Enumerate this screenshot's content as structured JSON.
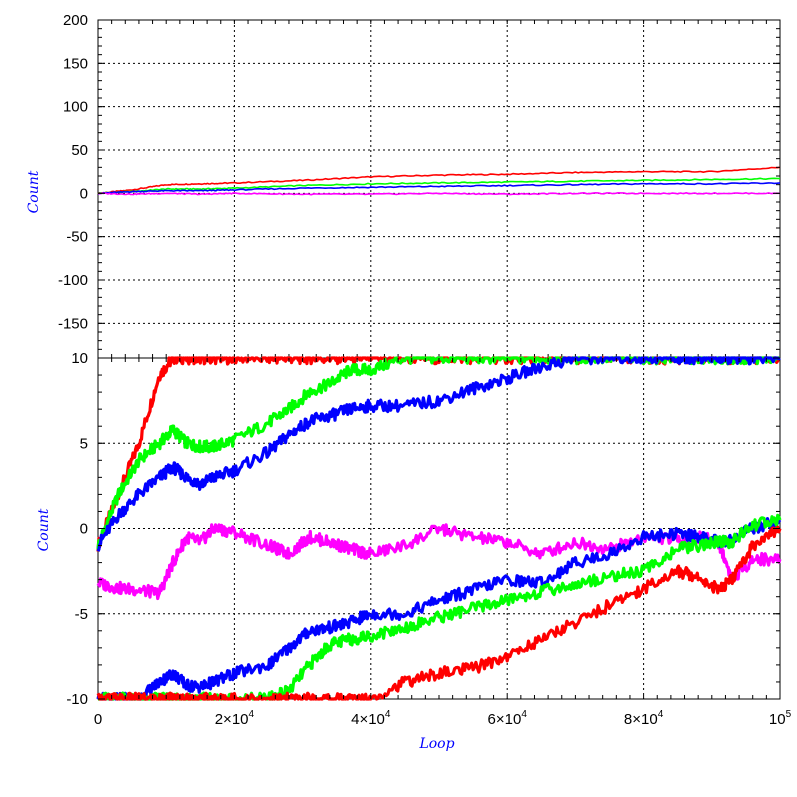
{
  "chart_data": [
    {
      "type": "line",
      "panel": "top",
      "ylabel": "Count",
      "xlim": [
        0,
        100000
      ],
      "ylim": [
        -190,
        200
      ],
      "yticks": [
        -150,
        -100,
        -50,
        0,
        50,
        100,
        150,
        200
      ],
      "ytick_labels": [
        "-150",
        "-100",
        "-50",
        "0",
        "50",
        "100",
        "150",
        "200"
      ],
      "grid": true,
      "x": [
        0,
        5000,
        10000,
        15000,
        20000,
        30000,
        40000,
        50000,
        60000,
        70000,
        80000,
        90000,
        100000
      ],
      "series": [
        {
          "color": "#ff0000",
          "values": [
            0,
            4,
            10,
            11,
            12,
            15,
            19,
            21,
            22,
            24,
            25,
            25,
            30
          ]
        },
        {
          "color": "#00ff00",
          "values": [
            0,
            2,
            5,
            5,
            6,
            9,
            11,
            12,
            13,
            14,
            15,
            16,
            17
          ]
        },
        {
          "color": "#0000ff",
          "values": [
            0,
            2,
            3,
            3,
            4,
            6,
            7,
            8,
            9,
            10,
            11,
            11,
            12
          ]
        },
        {
          "color": "#ff00ff",
          "values": [
            0,
            -1,
            0,
            -1,
            0,
            -1,
            -1,
            0,
            -1,
            0,
            0,
            0,
            0
          ]
        }
      ]
    },
    {
      "type": "line",
      "panel": "bottom",
      "ylabel": "Count",
      "xlabel": "Loop",
      "xlim": [
        0,
        100000
      ],
      "ylim": [
        -10,
        10
      ],
      "yticks": [
        -10,
        -5,
        0,
        5,
        10
      ],
      "ytick_labels": [
        "-10",
        "-5",
        "0",
        "5",
        "10"
      ],
      "xtick_values": [
        0,
        20000,
        40000,
        60000,
        80000,
        100000
      ],
      "xtick_labels": [
        {
          "mantissa": "0",
          "exp": ""
        },
        {
          "mantissa": "2×10",
          "exp": "4"
        },
        {
          "mantissa": "4×10",
          "exp": "4"
        },
        {
          "mantissa": "6×10",
          "exp": "4"
        },
        {
          "mantissa": "8×10",
          "exp": "4"
        },
        {
          "mantissa": "10",
          "exp": "5"
        }
      ],
      "grid": true,
      "x": [
        0,
        3000,
        6000,
        9000,
        11000,
        13000,
        15000,
        17000,
        20000,
        25000,
        28000,
        31000,
        34000,
        37000,
        40000,
        45000,
        50000,
        55000,
        60000,
        65000,
        70000,
        75000,
        80000,
        85000,
        88000,
        91000,
        93000,
        96000,
        100000
      ],
      "series": [
        {
          "color": "#ff0000",
          "values": [
            -1,
            2,
            5,
            9,
            10,
            10,
            10,
            10,
            10,
            10,
            10,
            10,
            10,
            10,
            10,
            10,
            10,
            10,
            10,
            10,
            10,
            10,
            10,
            10,
            10,
            10,
            10,
            10,
            10
          ]
        },
        {
          "color": "#00ff00",
          "values": [
            -1,
            2,
            4,
            5,
            5.8,
            5,
            4.8,
            4.8,
            5.2,
            6.2,
            7,
            8,
            8.5,
            9.3,
            9.3,
            10,
            10,
            10,
            10,
            10,
            10,
            10,
            10,
            10,
            10,
            10,
            10,
            10,
            10
          ]
        },
        {
          "color": "#0000ff",
          "values": [
            -1,
            0.8,
            2,
            3,
            3.6,
            3,
            2.6,
            3,
            3.4,
            4.5,
            5.5,
            6.3,
            6.6,
            7,
            7.2,
            7.2,
            7.5,
            8.2,
            8.8,
            9.5,
            10,
            10,
            10,
            10,
            10,
            10,
            10,
            10,
            10
          ]
        },
        {
          "color": "#ff00ff",
          "values": [
            -3.2,
            -3.5,
            -3.6,
            -3.8,
            -2,
            -0.5,
            -0.8,
            0,
            -0.2,
            -1,
            -1.5,
            -0.5,
            -0.8,
            -1.2,
            -1.5,
            -1,
            0,
            -0.5,
            -0.8,
            -1.5,
            -0.8,
            -1.2,
            -0.5,
            -0.6,
            -0.5,
            -0.8,
            -3,
            -1.8,
            -1.8
          ]
        },
        {
          "color": "#0000ff",
          "values": [
            -10,
            -10,
            -10,
            -9,
            -8.5,
            -9.2,
            -9.3,
            -9,
            -8.5,
            -8,
            -7,
            -6,
            -5.8,
            -5.5,
            -5,
            -5,
            -4.2,
            -3.6,
            -3,
            -3.2,
            -2,
            -1.5,
            -0.5,
            -0.3,
            -0.5,
            -0.8,
            -0.6,
            0,
            0.5
          ]
        },
        {
          "color": "#00ff00",
          "values": [
            -10,
            -10,
            -10,
            -10,
            -10,
            -10,
            -10,
            -10,
            -10,
            -10,
            -9.5,
            -8,
            -6.8,
            -6.5,
            -6.3,
            -5.8,
            -5.2,
            -4.7,
            -4.2,
            -3.7,
            -3.3,
            -2.8,
            -2.5,
            -1.2,
            -1,
            -0.8,
            -0.8,
            0.2,
            0.5
          ]
        },
        {
          "color": "#ff0000",
          "values": [
            -10,
            -10,
            -10,
            -10,
            -10,
            -10,
            -10,
            -10,
            -10,
            -10,
            -10,
            -10,
            -10,
            -10,
            -10,
            -9,
            -8.5,
            -8.2,
            -7.5,
            -6.5,
            -5.5,
            -4.5,
            -3.5,
            -2.5,
            -2.8,
            -3.6,
            -3,
            -1,
            0
          ]
        }
      ]
    }
  ]
}
